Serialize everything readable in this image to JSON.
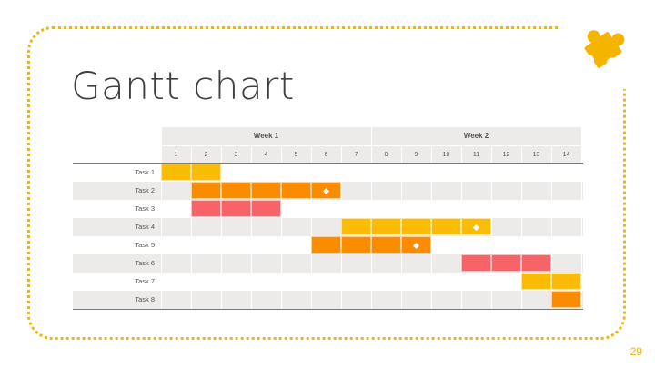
{
  "slide": {
    "title": "Gantt chart",
    "page_number": "29",
    "accent_color": "#f4b400",
    "icon": "puzzle-piece-icon"
  },
  "chart_data": {
    "type": "gantt",
    "weeks": [
      "Week 1",
      "Week 2"
    ],
    "days": [
      "1",
      "2",
      "3",
      "4",
      "5",
      "6",
      "7",
      "8",
      "9",
      "10",
      "11",
      "12",
      "13",
      "14"
    ],
    "colors": {
      "yellow": "#fbbc05",
      "orange": "#fb8c00",
      "red": "#f86367"
    },
    "tasks": [
      {
        "label": "Task 1",
        "start": 1,
        "end": 2,
        "color": "yellow",
        "milestone": null
      },
      {
        "label": "Task 2",
        "start": 2,
        "end": 6,
        "color": "orange",
        "milestone": 6
      },
      {
        "label": "Task 3",
        "start": 2,
        "end": 4,
        "color": "red",
        "milestone": null
      },
      {
        "label": "Task 4",
        "start": 7,
        "end": 11,
        "color": "yellow",
        "milestone": 11
      },
      {
        "label": "Task 5",
        "start": 6,
        "end": 9,
        "color": "orange",
        "milestone": 9
      },
      {
        "label": "Task 6",
        "start": 11,
        "end": 13,
        "color": "red",
        "milestone": null
      },
      {
        "label": "Task 7",
        "start": 13,
        "end": 14,
        "color": "yellow",
        "milestone": null
      },
      {
        "label": "Task 8",
        "start": 14,
        "end": 14,
        "color": "orange",
        "milestone": null
      }
    ]
  }
}
